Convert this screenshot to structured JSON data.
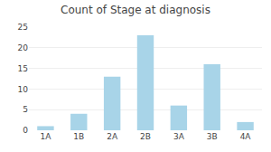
{
  "chart_data": {
    "type": "bar",
    "title": "Count of Stage at diagnosis",
    "categories": [
      "1A",
      "1B",
      "2A",
      "2B",
      "3A",
      "3B",
      "4A"
    ],
    "values": [
      1,
      4,
      13,
      23,
      6,
      16,
      2
    ],
    "color": "#a8d4e8",
    "ylim": [
      0,
      25
    ],
    "yticks": [
      0,
      5,
      10,
      15,
      20,
      25
    ],
    "grid": true
  }
}
